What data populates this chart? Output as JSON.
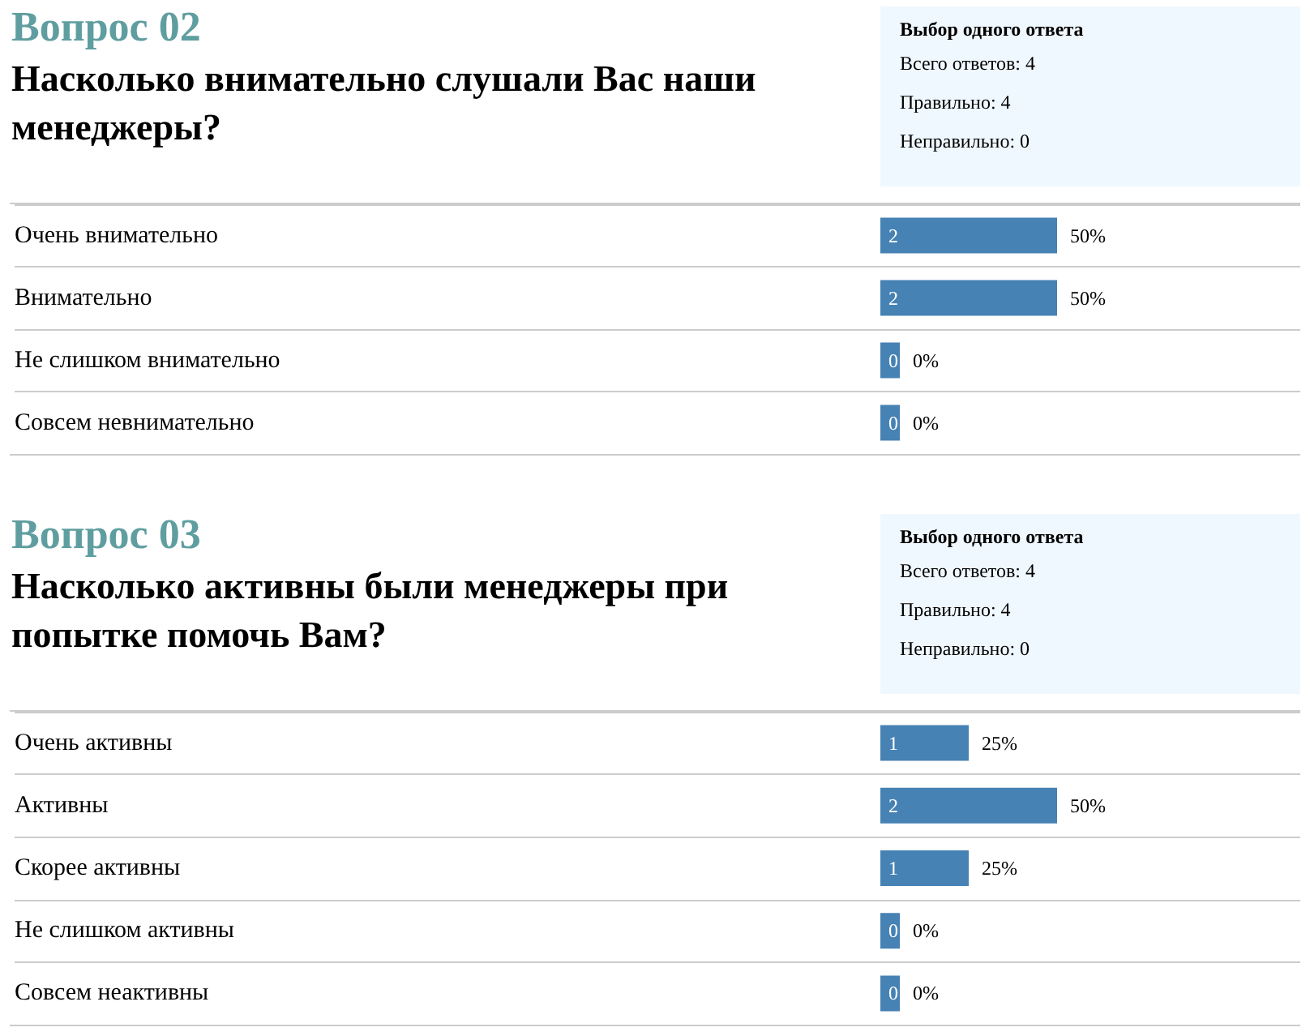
{
  "chart_data": [
    {
      "type": "bar",
      "orientation": "horizontal",
      "title": "Вопрос 02",
      "subtitle": "Насколько внимательно слушали Вас наши менеджеры?",
      "annotations": [
        "2",
        "2",
        "0",
        "0"
      ],
      "categories": [
        "Очень внимательно",
        "Внимательно",
        "Не слишком внимательно",
        "Совсем невнимательно"
      ],
      "values": [
        50,
        50,
        0,
        0
      ],
      "value_labels": [
        "50%",
        "50%",
        "0%",
        "0%"
      ],
      "color": "#4682b4",
      "grid": true
    },
    {
      "type": "other",
      "annotations": [
        "Выбор одного ответа",
        "Всего ответов: 4",
        "Правильно: 4",
        "Неправильно: 0"
      ]
    },
    {
      "type": "bar",
      "orientation": "horizontal",
      "title": "Вопрос 03",
      "subtitle": "Насколько активны были менеджеры при попытке помочь Вам?",
      "annotations": [
        "1",
        "2",
        "1",
        "0",
        "0"
      ],
      "categories": [
        "Очень активны",
        "Активны",
        "Скорее активны",
        "Не слишком активны",
        "Совсем неактивны"
      ],
      "values": [
        25,
        50,
        25,
        0,
        0
      ],
      "value_labels": [
        "25%",
        "50%",
        "25%",
        "0%",
        "0%"
      ],
      "color": "#4682b4",
      "grid": true
    },
    {
      "type": "other",
      "annotations": [
        "Выбор одного ответа",
        "Всего ответов: 4",
        "Правильно: 4",
        "Неправильно: 0"
      ]
    }
  ]
}
